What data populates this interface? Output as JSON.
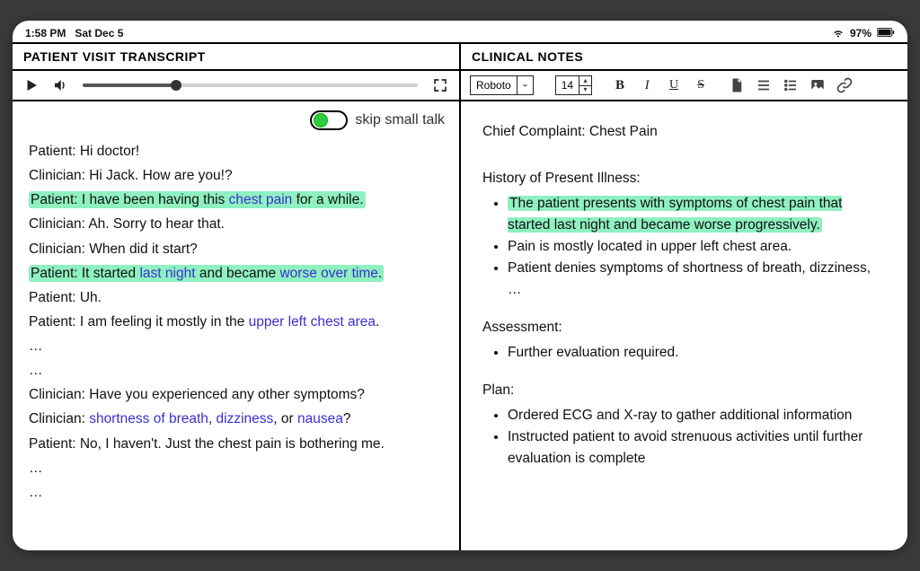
{
  "statusbar": {
    "time": "1:58 PM",
    "date": "Sat Dec 5",
    "battery_pct": "97%"
  },
  "left": {
    "title": "PATIENT VISIT TRANSCRIPT",
    "progress_pct": 28,
    "skip_toggle_on": true,
    "skip_toggle_label": "skip small talk",
    "lines": [
      {
        "speaker": "Patient",
        "highlight": false,
        "segments": [
          {
            "t": "Hi doctor!",
            "kw": false
          }
        ]
      },
      {
        "speaker": "Clinician",
        "highlight": false,
        "segments": [
          {
            "t": "Hi Jack. How are you!?",
            "kw": false
          }
        ]
      },
      {
        "speaker": "Patient",
        "highlight": true,
        "segments": [
          {
            "t": "I have been having this ",
            "kw": false
          },
          {
            "t": "chest pain",
            "kw": true
          },
          {
            "t": " for a while.",
            "kw": false
          }
        ]
      },
      {
        "speaker": "Clinician",
        "highlight": false,
        "segments": [
          {
            "t": "Ah. Sorry to hear that.",
            "kw": false
          }
        ]
      },
      {
        "speaker": "Clinician",
        "highlight": false,
        "segments": [
          {
            "t": "When did it start?",
            "kw": false
          }
        ]
      },
      {
        "speaker": "Patient",
        "highlight": true,
        "segments": [
          {
            "t": "It started ",
            "kw": false
          },
          {
            "t": "last night",
            "kw": true
          },
          {
            "t": " and became ",
            "kw": false
          },
          {
            "t": "worse over time",
            "kw": true
          },
          {
            "t": ".",
            "kw": false
          }
        ]
      },
      {
        "speaker": "Patient",
        "highlight": false,
        "segments": [
          {
            "t": "Uh.",
            "kw": false
          }
        ]
      },
      {
        "speaker": "Patient",
        "highlight": false,
        "segments": [
          {
            "t": "I am feeling it mostly in the ",
            "kw": false
          },
          {
            "t": "upper left chest area",
            "kw": true
          },
          {
            "t": ".",
            "kw": false
          }
        ]
      },
      {
        "speaker": "",
        "highlight": false,
        "segments": [
          {
            "t": "…",
            "kw": false
          }
        ]
      },
      {
        "speaker": "",
        "highlight": false,
        "segments": [
          {
            "t": "…",
            "kw": false
          }
        ]
      },
      {
        "speaker": "Clinician",
        "highlight": false,
        "segments": [
          {
            "t": "Have you experienced any other symptoms?",
            "kw": false
          }
        ]
      },
      {
        "speaker": "Clinician",
        "highlight": false,
        "segments": [
          {
            "t": "shortness of breath",
            "kw": true
          },
          {
            "t": ", ",
            "kw": false
          },
          {
            "t": "dizziness",
            "kw": true
          },
          {
            "t": ", or ",
            "kw": false
          },
          {
            "t": "nausea",
            "kw": true
          },
          {
            "t": "?",
            "kw": false
          }
        ]
      },
      {
        "speaker": "Patient",
        "highlight": false,
        "segments": [
          {
            "t": "No, I haven't. Just the chest pain is bothering me.",
            "kw": false
          }
        ]
      },
      {
        "speaker": "",
        "highlight": false,
        "segments": [
          {
            "t": "…",
            "kw": false
          }
        ]
      },
      {
        "speaker": "",
        "highlight": false,
        "segments": [
          {
            "t": "…",
            "kw": false
          }
        ]
      }
    ]
  },
  "right": {
    "title": "CLINICAL NOTES",
    "font_name": "Roboto",
    "font_size": "14",
    "chief_complaint_label": "Chief Complaint: Chest Pain",
    "hpi_label": "History of Present Illness:",
    "hpi_items": [
      {
        "text": "The patient presents with symptoms of chest pain that started last night and became worse progressively.",
        "highlight": true
      },
      {
        "text": "Pain is mostly located in upper left chest area.",
        "highlight": false
      },
      {
        "text": "Patient denies symptoms of shortness of breath, dizziness, …",
        "highlight": false
      }
    ],
    "assessment_label": "Assessment:",
    "assessment_items": [
      {
        "text": "Further evaluation required.",
        "highlight": false
      }
    ],
    "plan_label": "Plan:",
    "plan_items": [
      {
        "text": "Ordered ECG and X-ray to gather additional information",
        "highlight": false
      },
      {
        "text": "Instructed patient to avoid strenuous activities until further evaluation is complete",
        "highlight": false
      }
    ]
  },
  "colors": {
    "highlight": "#8ff0c0",
    "keyword": "#3b2fd1",
    "toggle_on": "#2ecc40"
  }
}
